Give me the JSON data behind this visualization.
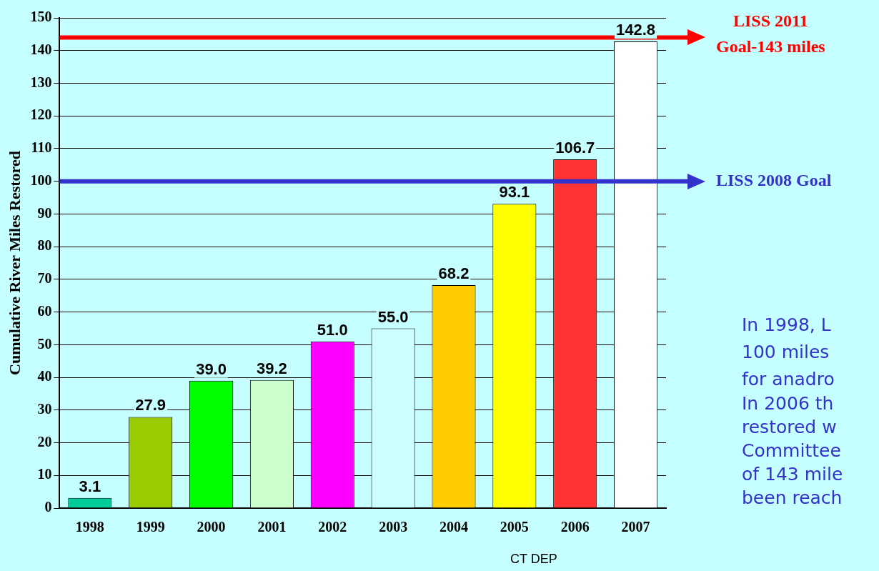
{
  "chart_data": {
    "type": "bar",
    "ylabel": "Cumulative River Miles Restored",
    "categories": [
      "1998",
      "1999",
      "2000",
      "2001",
      "2002",
      "2003",
      "2004",
      "2005",
      "2006",
      "2007"
    ],
    "values": [
      3.1,
      27.9,
      39.0,
      39.2,
      51.0,
      55.0,
      68.2,
      93.1,
      106.7,
      142.8
    ],
    "value_labels": [
      "3.1",
      "27.9",
      "39.0",
      "39.2",
      "51.0",
      "55.0",
      "68.2",
      "93.1",
      "106.7",
      "142.8"
    ],
    "colors": [
      "#00cc99",
      "#99cc00",
      "#00ff00",
      "#ccffcc",
      "#ff00ff",
      "#ccffff",
      "#ffcc00",
      "#ffff00",
      "#ff3333",
      "#ffffff"
    ],
    "ylim": [
      0,
      150
    ],
    "yticks": [
      0,
      10,
      20,
      30,
      40,
      50,
      60,
      70,
      80,
      90,
      100,
      110,
      120,
      130,
      140,
      150
    ],
    "grid": "y",
    "ref_lines": [
      {
        "axis": "y",
        "value": 144,
        "label": "LISS 2011 Goal-143 miles",
        "color": "#ff0000"
      },
      {
        "axis": "y",
        "value": 100,
        "label": "LISS 2008 Goal",
        "color": "#3333cc"
      }
    ],
    "annotations": [
      "CT DEP",
      "In 1998, L",
      "100 miles",
      "for anadro",
      "In 2006 th",
      "restored w",
      "Committee",
      "of 143 mile",
      "been reach"
    ]
  }
}
